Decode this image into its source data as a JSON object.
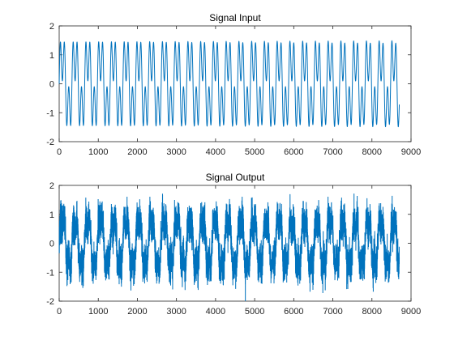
{
  "background": "#ffffff",
  "series_color": "#0072bd",
  "chart_data": [
    {
      "type": "line",
      "title": "Signal Input",
      "xlabel": "",
      "ylabel": "",
      "xlim": [
        0,
        9000
      ],
      "ylim": [
        -2,
        2
      ],
      "xticks": [
        "0",
        "1000",
        "2000",
        "3000",
        "4000",
        "5000",
        "6000",
        "7000",
        "8000",
        "9000"
      ],
      "yticks": [
        "-2",
        "-1",
        "0",
        "1",
        "2"
      ],
      "grid": false,
      "legend": "none",
      "x_range": [
        0,
        8700
      ],
      "samples": 8700,
      "series": [
        {
          "approximation": "sum of sinusoids read from the plotted waveform",
          "components": [
            {
              "amplitude": 1.0,
              "period": 326.0
            },
            {
              "amplitude": 0.9,
              "period": 108.7
            }
          ]
        }
      ]
    },
    {
      "type": "line",
      "title": "Signal Output",
      "xlabel": "",
      "ylabel": "",
      "xlim": [
        0,
        9000
      ],
      "ylim": [
        -2,
        2
      ],
      "xticks": [
        "0",
        "1000",
        "2000",
        "3000",
        "4000",
        "5000",
        "6000",
        "7000",
        "8000",
        "9000"
      ],
      "yticks": [
        "-2",
        "-1",
        "0",
        "1",
        "2"
      ],
      "grid": false,
      "legend": "none",
      "x_range": [
        0,
        8700
      ],
      "samples": 8700,
      "series": [
        {
          "approximation": "filtered version of the input plus broadband noise",
          "components": [
            {
              "amplitude": 0.85,
              "period": 326.0
            },
            {
              "amplitude": 0.3,
              "period": 108.7
            }
          ],
          "noise_std": 0.3,
          "observed_min": -2.0,
          "observed_max": 2.0
        }
      ]
    }
  ]
}
